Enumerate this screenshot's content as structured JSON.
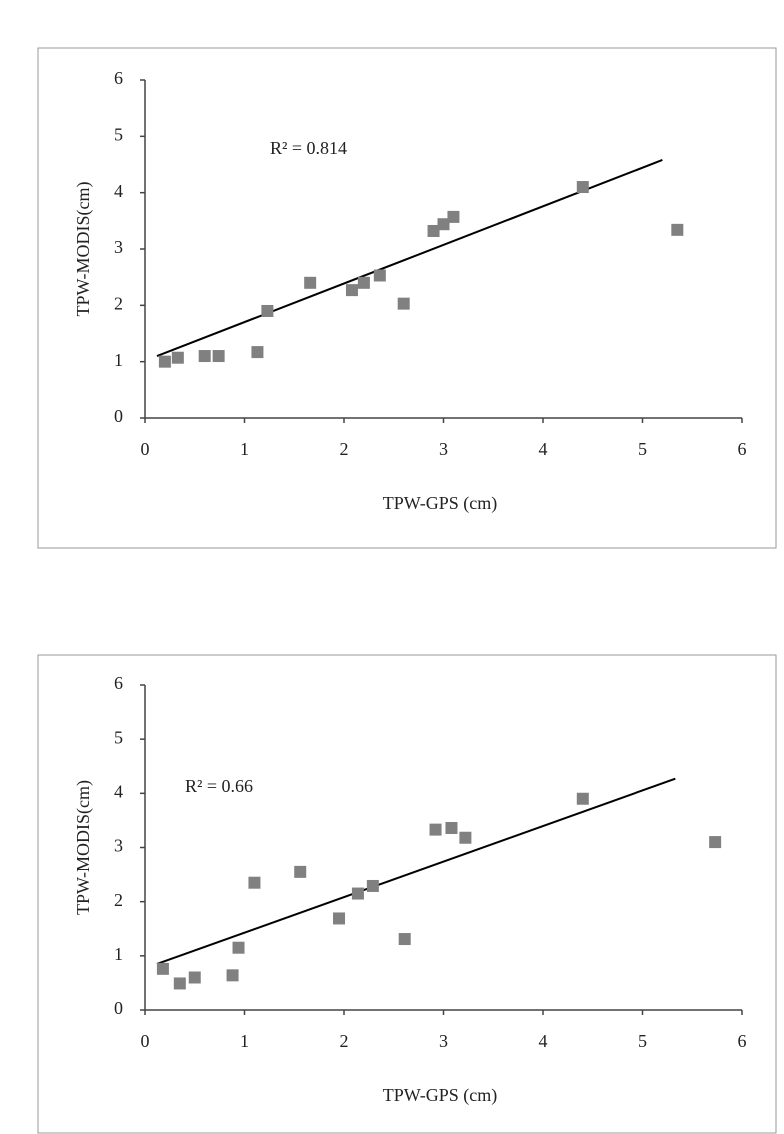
{
  "chart_data": [
    {
      "type": "scatter",
      "annotation": "R² = 0.814",
      "xlabel": "TPW-GPS (cm)",
      "ylabel": "TPW-MODIS(cm)",
      "xlim": [
        0,
        6
      ],
      "ylim": [
        0,
        6
      ],
      "xticks": [
        0,
        1,
        2,
        3,
        4,
        5,
        6
      ],
      "yticks": [
        0,
        1,
        2,
        3,
        4,
        5,
        6
      ],
      "series": [
        {
          "color": "#808080",
          "x": [
            0.2,
            0.33,
            0.6,
            0.74,
            1.13,
            1.23,
            1.66,
            2.08,
            2.2,
            2.36,
            2.6,
            2.9,
            3.0,
            3.1,
            4.4,
            5.35
          ],
          "values": [
            1.0,
            1.07,
            1.1,
            1.1,
            1.17,
            1.9,
            2.4,
            2.27,
            2.4,
            2.53,
            2.03,
            3.32,
            3.44,
            3.57,
            4.1,
            3.34
          ]
        }
      ],
      "trendline": {
        "color": "#000000",
        "x": [
          0.12,
          5.2
        ],
        "values": [
          1.1,
          4.58
        ]
      }
    },
    {
      "type": "scatter",
      "annotation": "R² = 0.66",
      "xlabel": "TPW-GPS (cm)",
      "ylabel": "TPW-MODIS(cm)",
      "xlim": [
        0,
        6
      ],
      "ylim": [
        0,
        6
      ],
      "xticks": [
        0,
        1,
        2,
        3,
        4,
        5,
        6
      ],
      "yticks": [
        0,
        1,
        2,
        3,
        4,
        5,
        6
      ],
      "series": [
        {
          "color": "#808080",
          "x": [
            0.18,
            0.35,
            0.5,
            0.88,
            0.94,
            1.1,
            1.56,
            1.95,
            2.14,
            2.29,
            2.61,
            2.92,
            3.08,
            3.22,
            4.4,
            5.73
          ],
          "values": [
            0.76,
            0.49,
            0.6,
            0.64,
            1.15,
            2.35,
            2.55,
            1.69,
            2.15,
            2.29,
            1.31,
            3.33,
            3.36,
            3.18,
            3.9,
            3.1
          ]
        }
      ],
      "trendline": {
        "color": "#000000",
        "x": [
          0.12,
          5.33
        ],
        "values": [
          0.85,
          4.27
        ]
      }
    }
  ]
}
